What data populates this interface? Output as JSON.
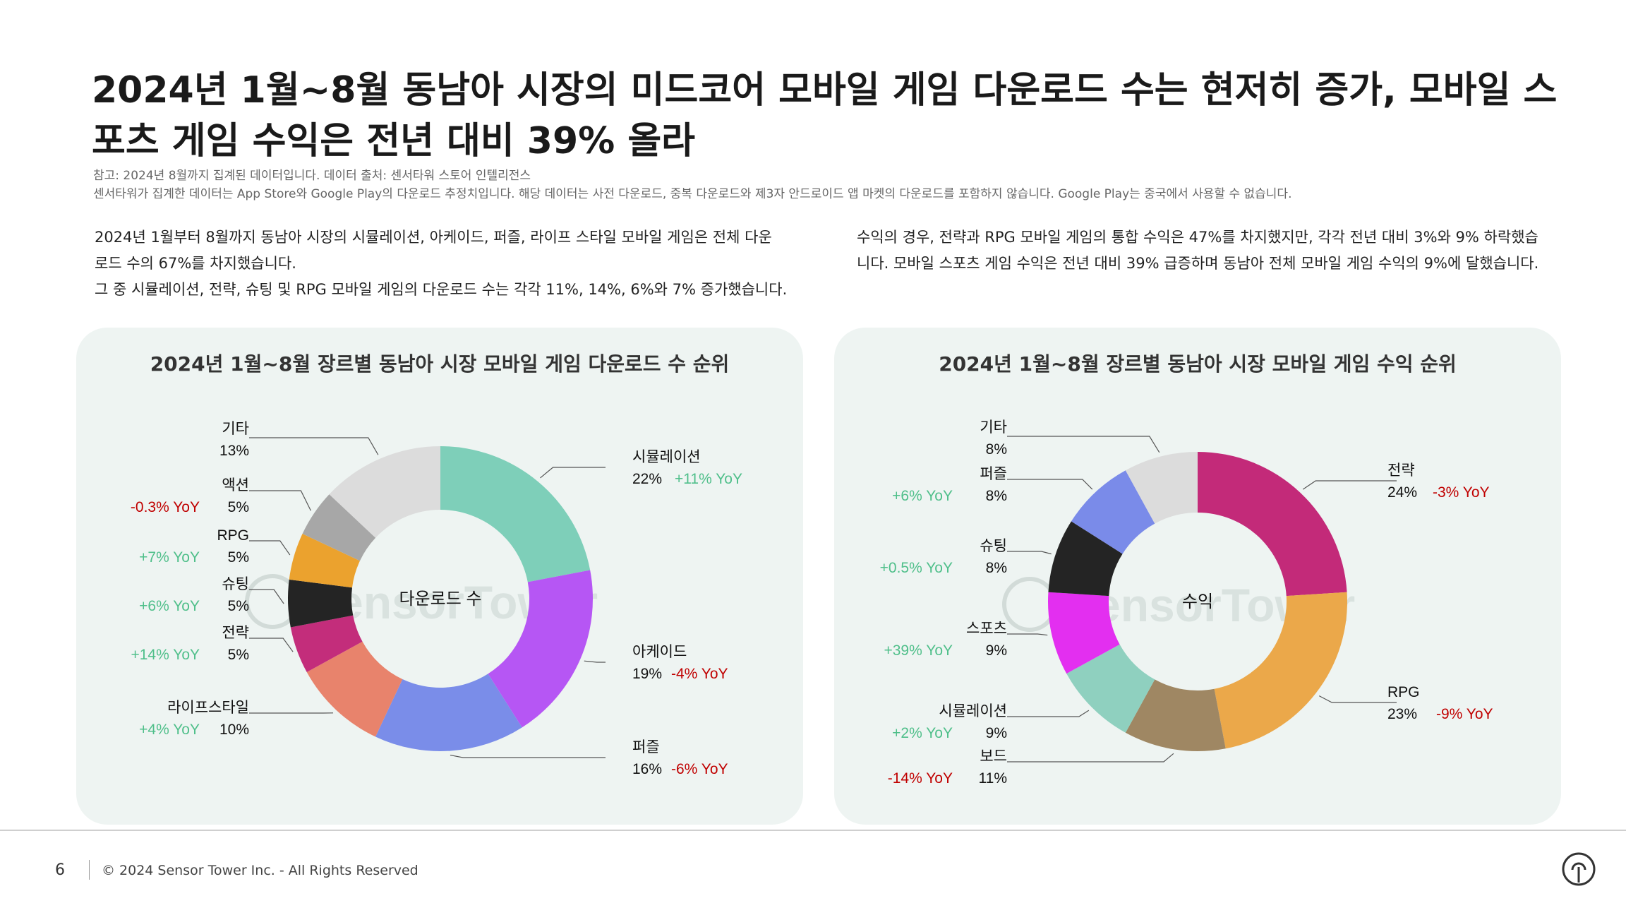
{
  "header": {
    "title": "2024년 1월~8월 동남아 시장의 미드코어 모바일 게임 다운로드 수는 현저히 증가, 모바일 스포츠 게임 수익은 전년 대비 39% 올라",
    "note_1": "참고: 2024년 8월까지 집계된 데이터입니다. 데이터 출처: 센서타워 스토어 인텔리전스",
    "note_2": "센서타워가 집계한 데이터는 App Store와 Google Play의 다운로드 추정치입니다. 해당 데이터는 사전 다운로드, 중복 다운로드와 제3자 안드로이드 앱 마켓의 다운로드를 포함하지 않습니다. Google Play는 중국에서 사용할 수 없습니다."
  },
  "body": {
    "left_line_1": "2024년 1월부터 8월까지 동남아 시장의 시뮬레이션, 아케이드, 퍼즐, 라이프 스타일 모바일 게임은 전체 다운",
    "left_line_2": "로드 수의 67%를 차지했습니다.",
    "left_line_3": "그 중 시뮬레이션, 전략, 슈팅 및 RPG 모바일 게임의 다운로드 수는 각각 11%, 14%, 6%와 7% 증가했습니다.",
    "right_line_1": "수익의 경우, 전략과 RPG 모바일 게임의 통합 수익은 47%를 차지했지만, 각각 전년 대비 3%와 9% 하락했습",
    "right_line_2": "니다. 모바일 스포츠 게임 수익은 전년 대비 39% 급증하며 동남아 전체 모바일 게임 수익의 9%에 달했습니다."
  },
  "colors": {
    "positive": "#4fbf8a",
    "negative": "#c00000"
  },
  "chart_data": [
    {
      "type": "pie",
      "title": "2024년 1월~8월 장르별 동남아 시장 모바일 게임 다운로드 수 순위",
      "center_label": "다운로드 수",
      "watermark": "SensorTower",
      "slices": [
        {
          "label": "시뮬레이션",
          "value": 22,
          "display": "22%",
          "yoy": "+11% YoY",
          "color": "#7ecfb9"
        },
        {
          "label": "아케이드",
          "value": 19,
          "display": "19%",
          "yoy": "-4% YoY",
          "color": "#b656f4"
        },
        {
          "label": "퍼즐",
          "value": 16,
          "display": "16%",
          "yoy": "-6% YoY",
          "color": "#7a8de9"
        },
        {
          "label": "라이프스타일",
          "value": 10,
          "display": "10%",
          "yoy": "+4% YoY",
          "color": "#e8836c"
        },
        {
          "label": "전략",
          "value": 5,
          "display": "5%",
          "yoy": "+14% YoY",
          "color": "#c32d7b"
        },
        {
          "label": "슈팅",
          "value": 5,
          "display": "5%",
          "yoy": "+6% YoY",
          "color": "#242424"
        },
        {
          "label": "RPG",
          "value": 5,
          "display": "5%",
          "yoy": "+7% YoY",
          "color": "#eba22e"
        },
        {
          "label": "액션",
          "value": 5,
          "display": "5%",
          "yoy": "-0.3% YoY",
          "color": "#a7a7a7"
        },
        {
          "label": "기타",
          "value": 13,
          "display": "13%",
          "yoy": "",
          "color": "#dcdcdc"
        }
      ]
    },
    {
      "type": "pie",
      "title": "2024년 1월~8월 장르별 동남아 시장 모바일 게임 수익 순위",
      "center_label": "수익",
      "watermark": "SensorTower",
      "slices": [
        {
          "label": "전략",
          "value": 24,
          "display": "24%",
          "yoy": "-3% YoY",
          "color": "#c32a79"
        },
        {
          "label": "RPG",
          "value": 23,
          "display": "23%",
          "yoy": "-9% YoY",
          "color": "#eba84a"
        },
        {
          "label": "보드",
          "value": 11,
          "display": "11%",
          "yoy": "-14% YoY",
          "color": "#9f8763"
        },
        {
          "label": "시뮬레이션",
          "value": 9,
          "display": "9%",
          "yoy": "+2% YoY",
          "color": "#8fd0bf"
        },
        {
          "label": "스포츠",
          "value": 9,
          "display": "9%",
          "yoy": "+39% YoY",
          "color": "#e32ff0"
        },
        {
          "label": "슈팅",
          "value": 8,
          "display": "8%",
          "yoy": "+0.5% YoY",
          "color": "#242424"
        },
        {
          "label": "퍼즐",
          "value": 8,
          "display": "8%",
          "yoy": "+6% YoY",
          "color": "#7a8be9"
        },
        {
          "label": "기타",
          "value": 8,
          "display": "8%",
          "yoy": "",
          "color": "#dcdcdc"
        }
      ]
    }
  ],
  "footer": {
    "page_number": "6",
    "copyright": "© 2024 Sensor Tower Inc. - All Rights Reserved"
  }
}
